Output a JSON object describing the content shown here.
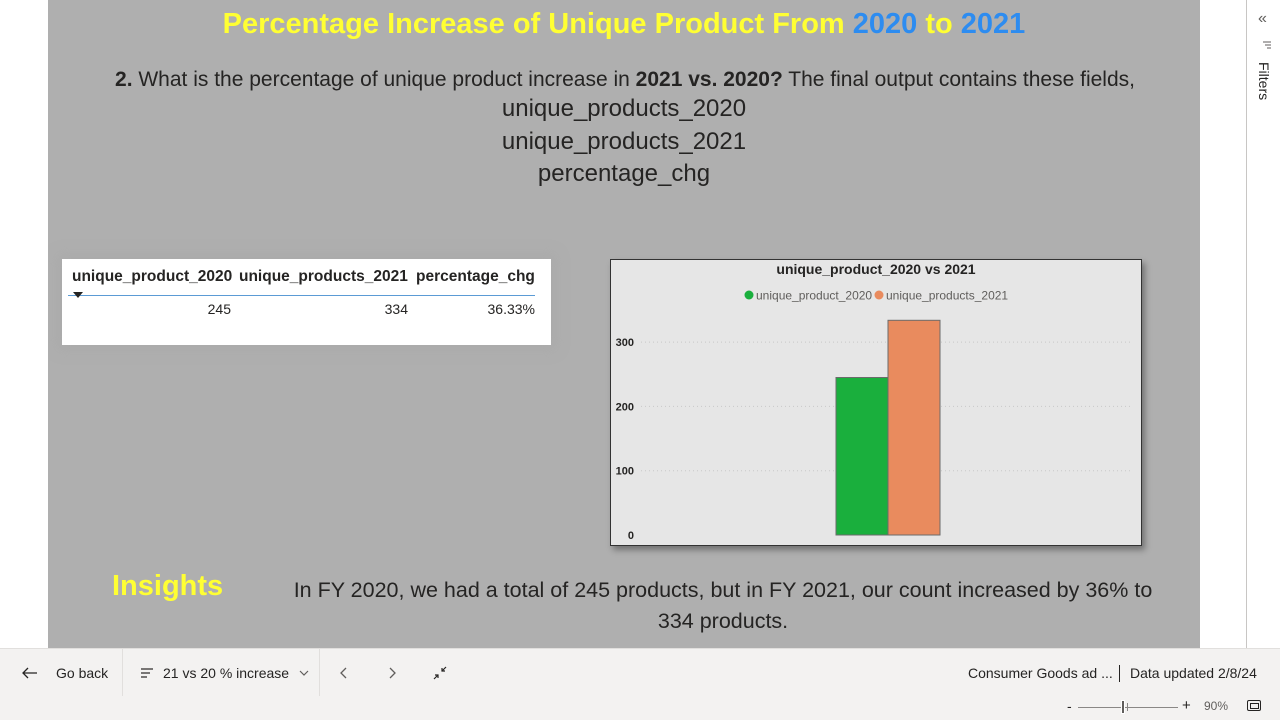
{
  "report": {
    "title_prefix": "Percentage Increase of Unique Product From ",
    "title_year_1": "2020",
    "title_mid": " to ",
    "title_year_2": "2021",
    "question_num": "2.",
    "question_text": " What is the percentage of unique product increase in ",
    "question_bold": "2021 vs. 2020?",
    "question_tail": " The final output contains these fields,",
    "fields": [
      "unique_products_2020",
      "unique_products_2021",
      "percentage_chg"
    ],
    "insights_label": "Insights",
    "insights_text": "In FY 2020, we had a total of 245 products, but in FY 2021, our count increased by 36% to 334 products."
  },
  "table": {
    "headers": [
      "unique_product_2020",
      "unique_products_2021",
      "percentage_chg"
    ],
    "row": [
      "245",
      "334",
      "36.33%"
    ]
  },
  "chart_data": {
    "type": "bar",
    "title": "unique_product_2020 vs 2021",
    "series": [
      {
        "name": "unique_product_2020",
        "values": [
          245
        ],
        "color": "#1aaf3d"
      },
      {
        "name": "unique_products_2021",
        "values": [
          334
        ],
        "color": "#e98b5e"
      }
    ],
    "y_ticks": [
      "0",
      "100",
      "200",
      "300"
    ],
    "ylim": [
      0,
      350
    ],
    "grid": true,
    "legend": "top-center"
  },
  "filters_pane": {
    "label": "Filters"
  },
  "navbar": {
    "go_back": "Go back",
    "page_name": "21 vs 20 % increase",
    "report_name": "Consumer Goods ad ...",
    "data_updated": "Data updated 2/8/24"
  },
  "status": {
    "zoom_minus": "-",
    "zoom_plus": "+",
    "zoom_level": "90%"
  },
  "icons": [
    "back-arrow-icon",
    "pages-list-icon",
    "chevron-down-icon",
    "prev-page-icon",
    "next-page-icon",
    "exit-focus-icon",
    "collapse-pane-icon",
    "filter-icon",
    "fit-to-page-icon"
  ]
}
